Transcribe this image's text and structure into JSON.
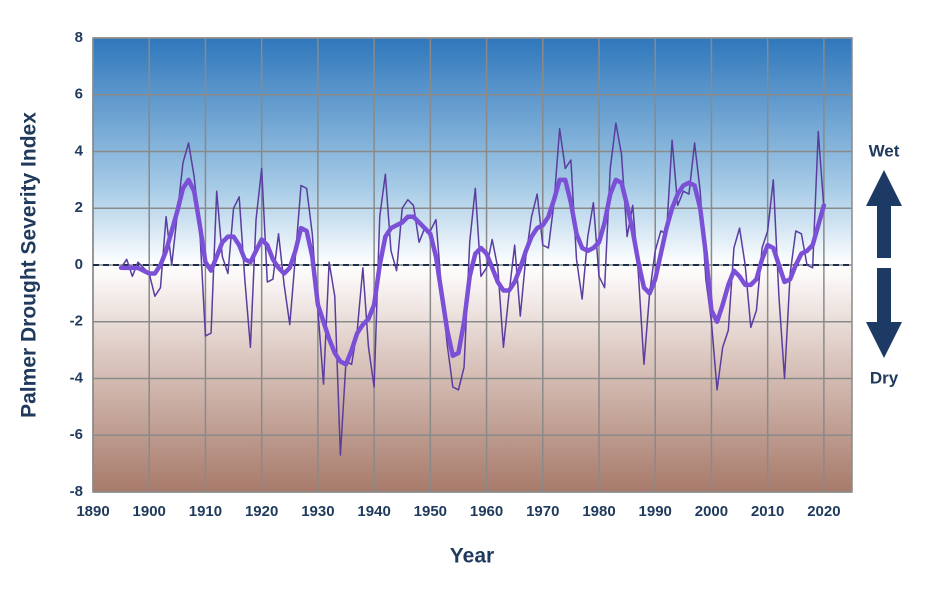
{
  "chart_data": {
    "type": "line",
    "x_label": "Year",
    "y_label": "Palmer Drought Severity Index",
    "annotations": [
      "Wet",
      "Dry"
    ],
    "x": [
      1895,
      1896,
      1897,
      1898,
      1899,
      1900,
      1901,
      1902,
      1903,
      1904,
      1905,
      1906,
      1907,
      1908,
      1909,
      1910,
      1911,
      1912,
      1913,
      1914,
      1915,
      1916,
      1917,
      1918,
      1919,
      1920,
      1921,
      1922,
      1923,
      1924,
      1925,
      1926,
      1927,
      1928,
      1929,
      1930,
      1931,
      1932,
      1933,
      1934,
      1935,
      1936,
      1937,
      1938,
      1939,
      1940,
      1941,
      1942,
      1943,
      1944,
      1945,
      1946,
      1947,
      1948,
      1949,
      1950,
      1951,
      1952,
      1953,
      1954,
      1955,
      1956,
      1957,
      1958,
      1959,
      1960,
      1961,
      1962,
      1963,
      1964,
      1965,
      1966,
      1967,
      1968,
      1969,
      1970,
      1971,
      1972,
      1973,
      1974,
      1975,
      1976,
      1977,
      1978,
      1979,
      1980,
      1981,
      1982,
      1983,
      1984,
      1985,
      1986,
      1987,
      1988,
      1989,
      1990,
      1991,
      1992,
      1993,
      1994,
      1995,
      1996,
      1997,
      1998,
      1999,
      2000,
      2001,
      2002,
      2003,
      2004,
      2005,
      2006,
      2007,
      2008,
      2009,
      2010,
      2011,
      2012,
      2013,
      2014,
      2015,
      2016,
      2017,
      2018,
      2019,
      2020
    ],
    "series": [
      {
        "color": "#5a3d9e",
        "width": 1.5,
        "values": [
          -0.1,
          0.2,
          -0.4,
          0.1,
          -0.1,
          -0.3,
          -1.1,
          -0.8,
          1.7,
          0.0,
          1.8,
          3.6,
          4.3,
          3.1,
          1.2,
          -2.5,
          -2.4,
          2.6,
          0.3,
          -0.3,
          2.0,
          2.4,
          -0.5,
          -2.9,
          1.6,
          3.4,
          -0.6,
          -0.5,
          1.1,
          -0.7,
          -2.1,
          0.3,
          2.8,
          2.7,
          1.1,
          -1.6,
          -4.2,
          0.1,
          -1.1,
          -6.7,
          -3.4,
          -3.5,
          -2.3,
          -0.1,
          -2.9,
          -4.3,
          1.7,
          3.2,
          0.5,
          -0.2,
          2.0,
          2.3,
          2.1,
          0.8,
          1.3,
          1.2,
          1.6,
          -0.9,
          -2.8,
          -4.3,
          -4.4,
          -3.6,
          0.8,
          2.7,
          -0.4,
          -0.1,
          0.9,
          -0.1,
          -2.9,
          -1.0,
          0.7,
          -1.8,
          0.3,
          1.7,
          2.5,
          0.7,
          0.6,
          2.2,
          4.8,
          3.4,
          3.7,
          0.2,
          -1.2,
          1.0,
          2.2,
          -0.4,
          -0.8,
          3.4,
          5.0,
          3.9,
          1.0,
          2.1,
          -0.3,
          -3.5,
          -1.0,
          0.5,
          1.2,
          1.1,
          4.4,
          2.1,
          2.6,
          2.5,
          4.3,
          2.6,
          -0.5,
          -2.0,
          -4.4,
          -2.9,
          -2.3,
          0.6,
          1.3,
          0.0,
          -2.2,
          -1.6,
          0.6,
          1.2,
          3.0,
          -1.1,
          -4.0,
          -0.3,
          1.2,
          1.1,
          0.0,
          -0.1,
          4.7,
          2.0
        ]
      },
      {
        "color": "#7b4fd6",
        "width": 4.5,
        "values": [
          -0.1,
          -0.1,
          -0.1,
          -0.1,
          -0.2,
          -0.3,
          -0.3,
          0.0,
          0.5,
          1.2,
          1.9,
          2.7,
          3.0,
          2.6,
          1.4,
          0.1,
          -0.2,
          0.3,
          0.8,
          1.0,
          1.0,
          0.7,
          0.2,
          0.1,
          0.5,
          0.9,
          0.7,
          0.2,
          -0.1,
          -0.3,
          -0.1,
          0.5,
          1.3,
          1.2,
          0.3,
          -1.4,
          -2.0,
          -2.6,
          -3.1,
          -3.4,
          -3.5,
          -3.0,
          -2.4,
          -2.1,
          -1.9,
          -1.4,
          0.0,
          1.0,
          1.3,
          1.4,
          1.5,
          1.7,
          1.7,
          1.5,
          1.3,
          1.1,
          0.3,
          -1.0,
          -2.3,
          -3.2,
          -3.1,
          -2.0,
          -0.4,
          0.4,
          0.6,
          0.4,
          -0.1,
          -0.6,
          -0.9,
          -0.9,
          -0.6,
          -0.1,
          0.5,
          1.0,
          1.3,
          1.4,
          1.7,
          2.3,
          3.0,
          3.0,
          2.2,
          1.1,
          0.6,
          0.5,
          0.6,
          0.8,
          1.5,
          2.5,
          3.0,
          2.9,
          2.1,
          1.2,
          0.1,
          -0.8,
          -1.0,
          -0.5,
          0.4,
          1.3,
          2.0,
          2.5,
          2.8,
          2.9,
          2.8,
          2.0,
          0.4,
          -1.6,
          -2.0,
          -1.4,
          -0.7,
          -0.2,
          -0.4,
          -0.7,
          -0.7,
          -0.5,
          0.2,
          0.7,
          0.6,
          0.0,
          -0.6,
          -0.5,
          0.0,
          0.4,
          0.5,
          0.7,
          1.4,
          2.1
        ]
      }
    ],
    "xlim": [
      1890,
      2025
    ],
    "xticks": [
      1890,
      1900,
      1910,
      1920,
      1930,
      1940,
      1950,
      1960,
      1970,
      1980,
      1990,
      2000,
      2010,
      2020
    ],
    "ylim": [
      -8,
      8
    ],
    "yticks": [
      -8,
      -6,
      -4,
      -2,
      0,
      2,
      4,
      6,
      8
    ],
    "grid": true,
    "zero_line": true
  }
}
